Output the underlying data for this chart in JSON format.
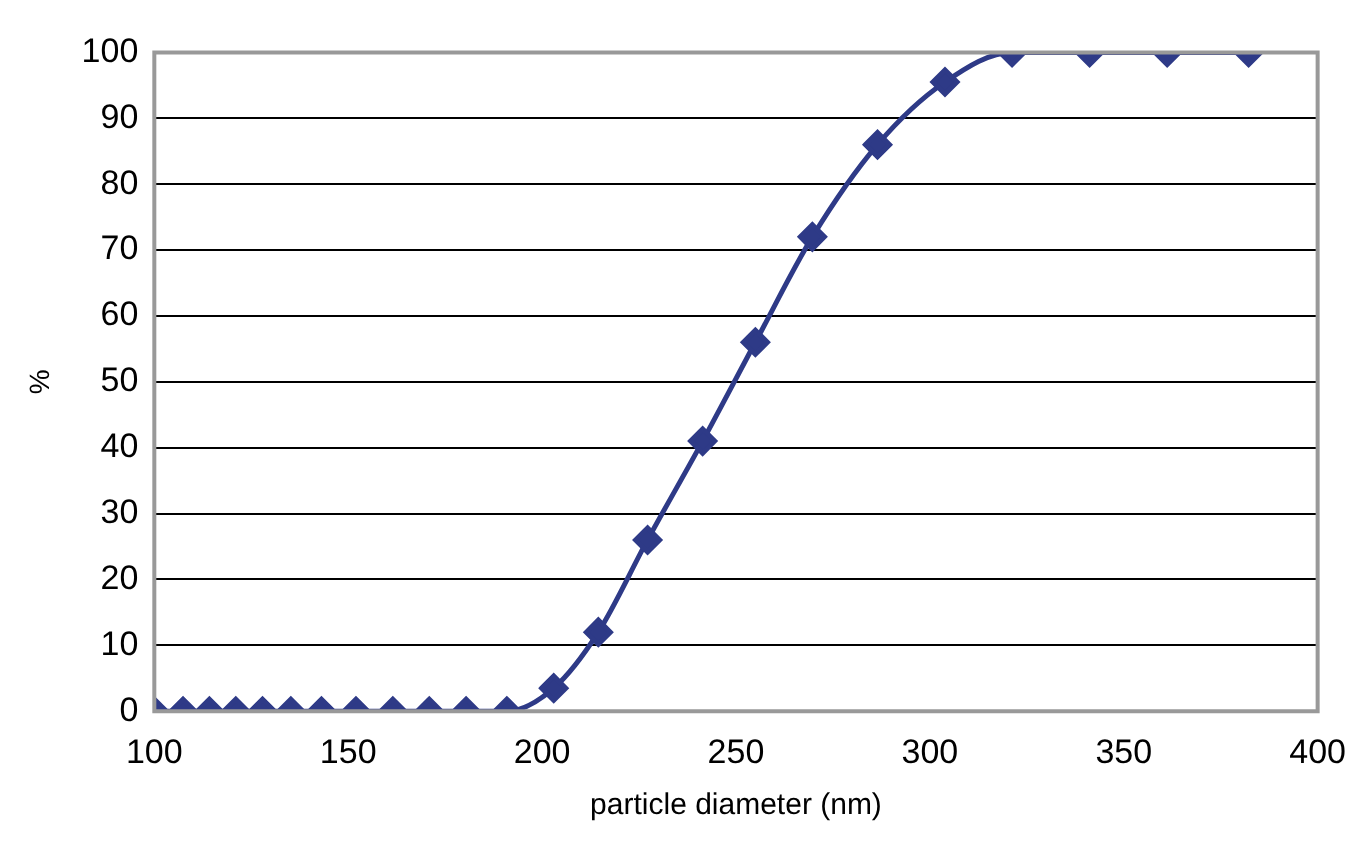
{
  "chart_data": {
    "type": "line",
    "xlabel": "particle diameter (nm)",
    "ylabel": "%",
    "x": [
      100,
      107.4,
      114.2,
      121,
      127.9,
      135.2,
      143.1,
      152,
      161.5,
      170.9,
      180.4,
      190.9,
      203,
      214.5,
      227.2,
      241.4,
      255,
      269.7,
      286.5,
      303.9,
      321.2,
      341.2,
      361.2,
      382.2
    ],
    "series": [
      {
        "color": "#2e3a87",
        "values": [
          0,
          0,
          0,
          0,
          0,
          0,
          0,
          0,
          0,
          0,
          0,
          0,
          3.5,
          12,
          26,
          41,
          56,
          72,
          86,
          95.5,
          100,
          100,
          100,
          100
        ]
      }
    ],
    "xlim": [
      100,
      400
    ],
    "xticks": [
      100,
      150,
      200,
      250,
      300,
      350,
      400
    ],
    "ylim": [
      0,
      100
    ],
    "yticks": [
      0,
      10,
      20,
      30,
      40,
      50,
      60,
      70,
      80,
      90,
      100
    ],
    "grid": "y",
    "legend": false,
    "marker": "diamond",
    "line_style": "solid"
  }
}
